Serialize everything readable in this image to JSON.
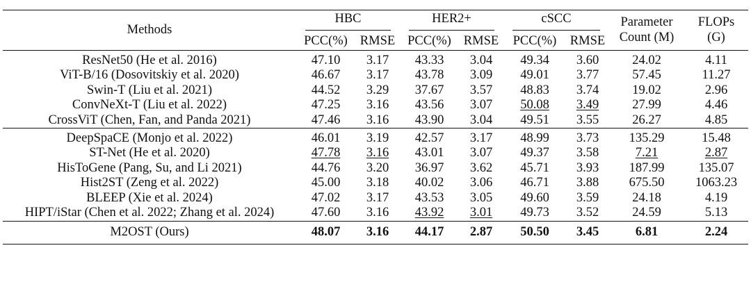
{
  "table": {
    "header": {
      "methods": "Methods",
      "groups": [
        "HBC",
        "HER2+",
        "cSCC"
      ],
      "sub": [
        "PCC(%)",
        "RMSE",
        "PCC(%)",
        "RMSE",
        "PCC(%)",
        "RMSE"
      ],
      "param_line1": "Parameter",
      "param_line2": "Count (M)",
      "flops_line1": "FLOPs",
      "flops_line2": "(G)"
    },
    "group1": [
      {
        "method": "ResNet50 (He et al. 2016)",
        "values": [
          "47.10",
          "3.17",
          "43.33",
          "3.04",
          "49.34",
          "3.60",
          "24.02",
          "4.11"
        ],
        "underline": [],
        "bold": []
      },
      {
        "method": "ViT-B/16 (Dosovitskiy et al. 2020)",
        "values": [
          "46.67",
          "3.17",
          "43.78",
          "3.09",
          "49.01",
          "3.77",
          "57.45",
          "11.27"
        ],
        "underline": [],
        "bold": []
      },
      {
        "method": "Swin-T (Liu et al. 2021)",
        "values": [
          "44.52",
          "3.29",
          "37.67",
          "3.57",
          "48.83",
          "3.74",
          "19.02",
          "2.96"
        ],
        "underline": [],
        "bold": []
      },
      {
        "method": "ConvNeXt-T (Liu et al. 2022)",
        "values": [
          "47.25",
          "3.16",
          "43.56",
          "3.07",
          "50.08",
          "3.49",
          "27.99",
          "4.46"
        ],
        "underline": [
          4,
          5
        ],
        "bold": []
      },
      {
        "method": "CrossViT (Chen, Fan, and Panda 2021)",
        "values": [
          "47.46",
          "3.16",
          "43.90",
          "3.04",
          "49.51",
          "3.55",
          "26.27",
          "4.85"
        ],
        "underline": [],
        "bold": []
      }
    ],
    "group2": [
      {
        "method": "DeepSpaCE (Monjo et al. 2022)",
        "values": [
          "46.01",
          "3.19",
          "42.57",
          "3.17",
          "48.99",
          "3.73",
          "135.29",
          "15.48"
        ],
        "underline": [],
        "bold": []
      },
      {
        "method": "ST-Net (He et al. 2020)",
        "values": [
          "47.78",
          "3.16",
          "43.01",
          "3.07",
          "49.37",
          "3.58",
          "7.21",
          "2.87"
        ],
        "underline": [
          0,
          1,
          6,
          7
        ],
        "bold": []
      },
      {
        "method": "HisToGene (Pang, Su, and Li 2021)",
        "values": [
          "44.76",
          "3.20",
          "36.97",
          "3.62",
          "45.71",
          "3.93",
          "187.99",
          "135.07"
        ],
        "underline": [],
        "bold": []
      },
      {
        "method": "Hist2ST (Zeng et al. 2022)",
        "values": [
          "45.00",
          "3.18",
          "40.02",
          "3.06",
          "46.71",
          "3.88",
          "675.50",
          "1063.23"
        ],
        "underline": [],
        "bold": []
      },
      {
        "method": "BLEEP (Xie et al. 2024)",
        "values": [
          "47.02",
          "3.17",
          "43.53",
          "3.05",
          "49.60",
          "3.59",
          "24.18",
          "4.19"
        ],
        "underline": [],
        "bold": []
      },
      {
        "method": "HIPT/iStar (Chen et al. 2022; Zhang et al. 2024)",
        "values": [
          "47.60",
          "3.16",
          "43.92",
          "3.01",
          "49.73",
          "3.52",
          "24.59",
          "5.13"
        ],
        "underline": [
          2,
          3
        ],
        "bold": []
      }
    ],
    "ours": {
      "method": "M2OST (Ours)",
      "values": [
        "48.07",
        "3.16",
        "44.17",
        "2.87",
        "50.50",
        "3.45",
        "6.81",
        "2.24"
      ],
      "underline": [],
      "bold": [
        0,
        1,
        2,
        3,
        4,
        5,
        6,
        7
      ]
    }
  }
}
